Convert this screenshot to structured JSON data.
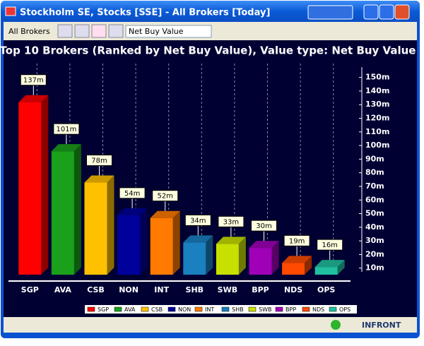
{
  "window": {
    "title": "Stockholm SE, Stocks [SSE] - All Brokers [Today]"
  },
  "toolbar": {
    "broker_menu": "All Brokers",
    "value_select": "Net Buy Value"
  },
  "status": {
    "brand": "INFRONT"
  },
  "chart_data": {
    "type": "bar3d",
    "title": "Top 10 Brokers (Ranked by Net Buy Value), Value type: Net Buy Value",
    "categories": [
      "SGP",
      "AVA",
      "CSB",
      "NON",
      "INT",
      "SHB",
      "SWB",
      "BPP",
      "NDS",
      "OPS"
    ],
    "values": [
      137,
      101,
      78,
      54,
      52,
      34,
      33,
      30,
      19,
      16
    ],
    "value_labels": [
      "137m",
      "101m",
      "78m",
      "54m",
      "52m",
      "34m",
      "33m",
      "30m",
      "19m",
      "16m"
    ],
    "colors": [
      "#ff0000",
      "#1aa01a",
      "#ffc000",
      "#00009a",
      "#ff7a00",
      "#1a80c0",
      "#c8e000",
      "#a000b8",
      "#ff4a00",
      "#20c0a0"
    ],
    "ylim": [
      0,
      155
    ],
    "yticks": [
      {
        "value": 10,
        "label": "10m"
      },
      {
        "value": 20,
        "label": "20m"
      },
      {
        "value": 30,
        "label": "30m"
      },
      {
        "value": 40,
        "label": "40m"
      },
      {
        "value": 50,
        "label": "50m"
      },
      {
        "value": 60,
        "label": "60m"
      },
      {
        "value": 70,
        "label": "70m"
      },
      {
        "value": 80,
        "label": "80m"
      },
      {
        "value": 90,
        "label": "90m"
      },
      {
        "value": 100,
        "label": "100m"
      },
      {
        "value": 110,
        "label": "110m"
      },
      {
        "value": 120,
        "label": "120m"
      },
      {
        "value": 130,
        "label": "130m"
      },
      {
        "value": 140,
        "label": "140m"
      },
      {
        "value": 150,
        "label": "150m"
      }
    ],
    "grid": true
  }
}
